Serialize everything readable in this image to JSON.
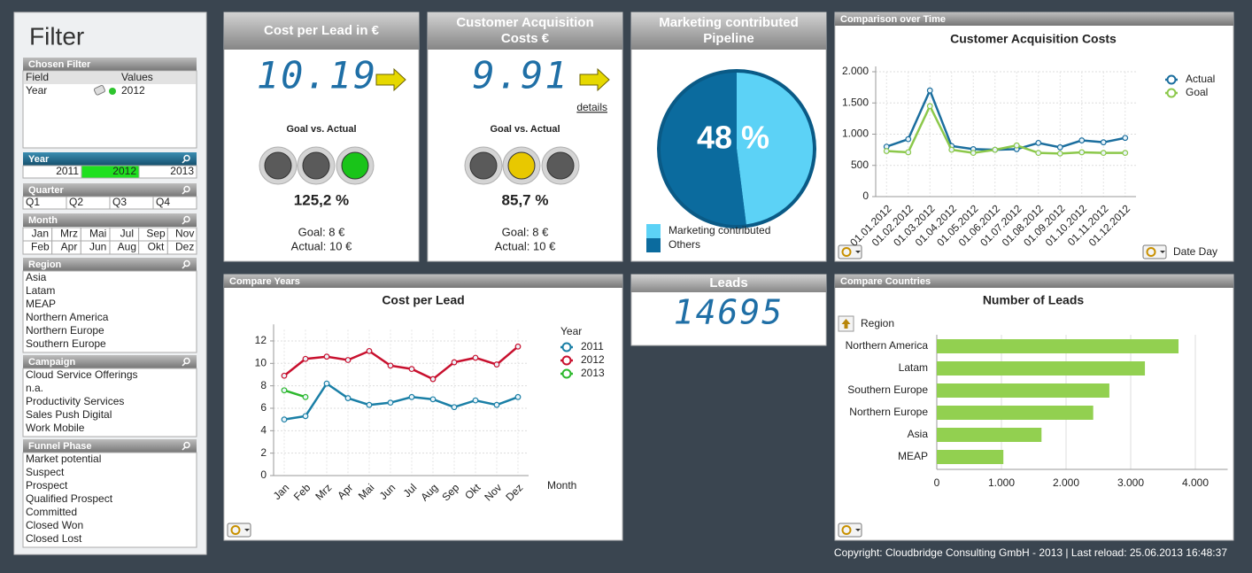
{
  "filter": {
    "title": "Filter",
    "chosen": {
      "title": "Chosen Filter",
      "headers": [
        "Field",
        "Values"
      ],
      "rows": [
        [
          "Year",
          "2012"
        ]
      ]
    },
    "year": {
      "title": "Year",
      "items": [
        "2011",
        "2012",
        "2013"
      ],
      "selected": "2012"
    },
    "quarter": {
      "title": "Quarter",
      "items": [
        "Q1",
        "Q2",
        "Q3",
        "Q4"
      ]
    },
    "month": {
      "title": "Month",
      "items": [
        "Jan",
        "Mrz",
        "Mai",
        "Jul",
        "Sep",
        "Nov",
        "Feb",
        "Apr",
        "Jun",
        "Aug",
        "Okt",
        "Dez"
      ]
    },
    "region": {
      "title": "Region",
      "items": [
        "Asia",
        "Latam",
        "MEAP",
        "Northern America",
        "Northern Europe",
        "Southern Europe"
      ]
    },
    "campaign": {
      "title": "Campaign",
      "items": [
        "Cloud Service Offerings",
        "n.a.",
        "Productivity Services",
        "Sales Push Digital",
        "Work Mobile"
      ]
    },
    "funnel": {
      "title": "Funnel Phase",
      "items": [
        "Market potential",
        "Suspect",
        "Prospect",
        "Qualified Prospect",
        "Committed",
        "Closed Won",
        "Closed Lost"
      ]
    }
  },
  "kpis": [
    {
      "title": "Cost per Lead in €",
      "value": "10.19",
      "subtitle": "Goal vs. Actual",
      "ratio": "125,2 %",
      "goal": "Goal: 8 €",
      "actual": "Actual: 10 €"
    },
    {
      "title": "Customer Acquisition Costs €",
      "value": "9.91",
      "link": "details",
      "subtitle": "Goal vs. Actual",
      "ratio": "85,7 %",
      "goal": "Goal: 8 €",
      "actual": "Actual: 10 €"
    }
  ],
  "leads": {
    "title": "Leads",
    "value": "14695"
  },
  "chart_data": [
    {
      "type": "line",
      "panel_title": "Comparison over Time",
      "title": "Customer Acquisition Costs",
      "x_label": "Date Day",
      "categories": [
        "01.01.2012",
        "01.02.2012",
        "01.03.2012",
        "01.04.2012",
        "01.05.2012",
        "01.06.2012",
        "01.07.2012",
        "01.08.2012",
        "01.09.2012",
        "01.10.2012",
        "01.11.2012",
        "01.12.2012"
      ],
      "series": [
        {
          "name": "Actual",
          "color": "#1b6e9e",
          "values": [
            800,
            920,
            1700,
            810,
            760,
            750,
            760,
            860,
            790,
            900,
            870,
            940
          ]
        },
        {
          "name": "Goal",
          "color": "#8cc84b",
          "values": [
            730,
            710,
            1450,
            750,
            700,
            750,
            820,
            700,
            690,
            710,
            700,
            700
          ]
        }
      ],
      "ylim": [
        0,
        2000
      ],
      "yticks": [
        0,
        500,
        {
          "value": 1000,
          "label": "1.000"
        },
        {
          "value": 1500,
          "label": "1.500"
        },
        {
          "value": 2000,
          "label": "2.000"
        }
      ],
      "grid": true
    },
    {
      "type": "line",
      "panel_title": "Compare Years",
      "title": "Cost per Lead",
      "legend_title": "Year",
      "x_label": "Month",
      "categories": [
        "Jan",
        "Feb",
        "Mrz",
        "Apr",
        "Mai",
        "Jun",
        "Jul",
        "Aug",
        "Sep",
        "Okt",
        "Nov",
        "Dez"
      ],
      "series": [
        {
          "name": "2011",
          "color": "#1a7fa6",
          "values": [
            5.0,
            5.3,
            8.2,
            6.9,
            6.3,
            6.5,
            7.0,
            6.8,
            6.1,
            6.7,
            6.3,
            7.0
          ]
        },
        {
          "name": "2012",
          "color": "#c8102e",
          "values": [
            8.9,
            10.4,
            10.6,
            10.3,
            11.1,
            9.8,
            9.5,
            8.6,
            10.1,
            10.5,
            9.9,
            11.5
          ]
        },
        {
          "name": "2013",
          "color": "#2db82d",
          "values": [
            7.6,
            7.0,
            null,
            null,
            null,
            null,
            null,
            null,
            null,
            null,
            null,
            null
          ]
        }
      ],
      "ylim": [
        0,
        13
      ],
      "yticks": [
        0,
        2,
        4,
        6,
        8,
        10,
        12
      ],
      "grid": true
    },
    {
      "type": "bar",
      "panel_title": "Compare Countries",
      "title": "Number of Leads",
      "y_label": "Region",
      "categories": [
        "Northern America",
        "Latam",
        "Southern Europe",
        "Northern Europe",
        "Asia",
        "MEAP"
      ],
      "values": [
        3740,
        3220,
        2670,
        2420,
        1620,
        1030
      ],
      "color": "#92d050",
      "xlim": [
        0,
        4500
      ],
      "xticks": [
        0,
        {
          "value": 1000,
          "label": "1.000"
        },
        {
          "value": 2000,
          "label": "2.000"
        },
        {
          "value": 3000,
          "label": "3.000"
        },
        {
          "value": 4000,
          "label": "4.000"
        }
      ],
      "grid": true
    },
    {
      "type": "pie",
      "title": "Marketing contributed Pipeline",
      "categories": [
        "Marketing contributed",
        "Others"
      ],
      "values": [
        48,
        52
      ],
      "value_labels": [
        "48 %",
        null
      ],
      "colors": [
        "#5cd2f6",
        "#0b6b9e"
      ]
    }
  ],
  "footer": "Copyright: Cloudbridge Consulting GmbH - 2013 | Last reload: 25.06.2013 16:48:37"
}
